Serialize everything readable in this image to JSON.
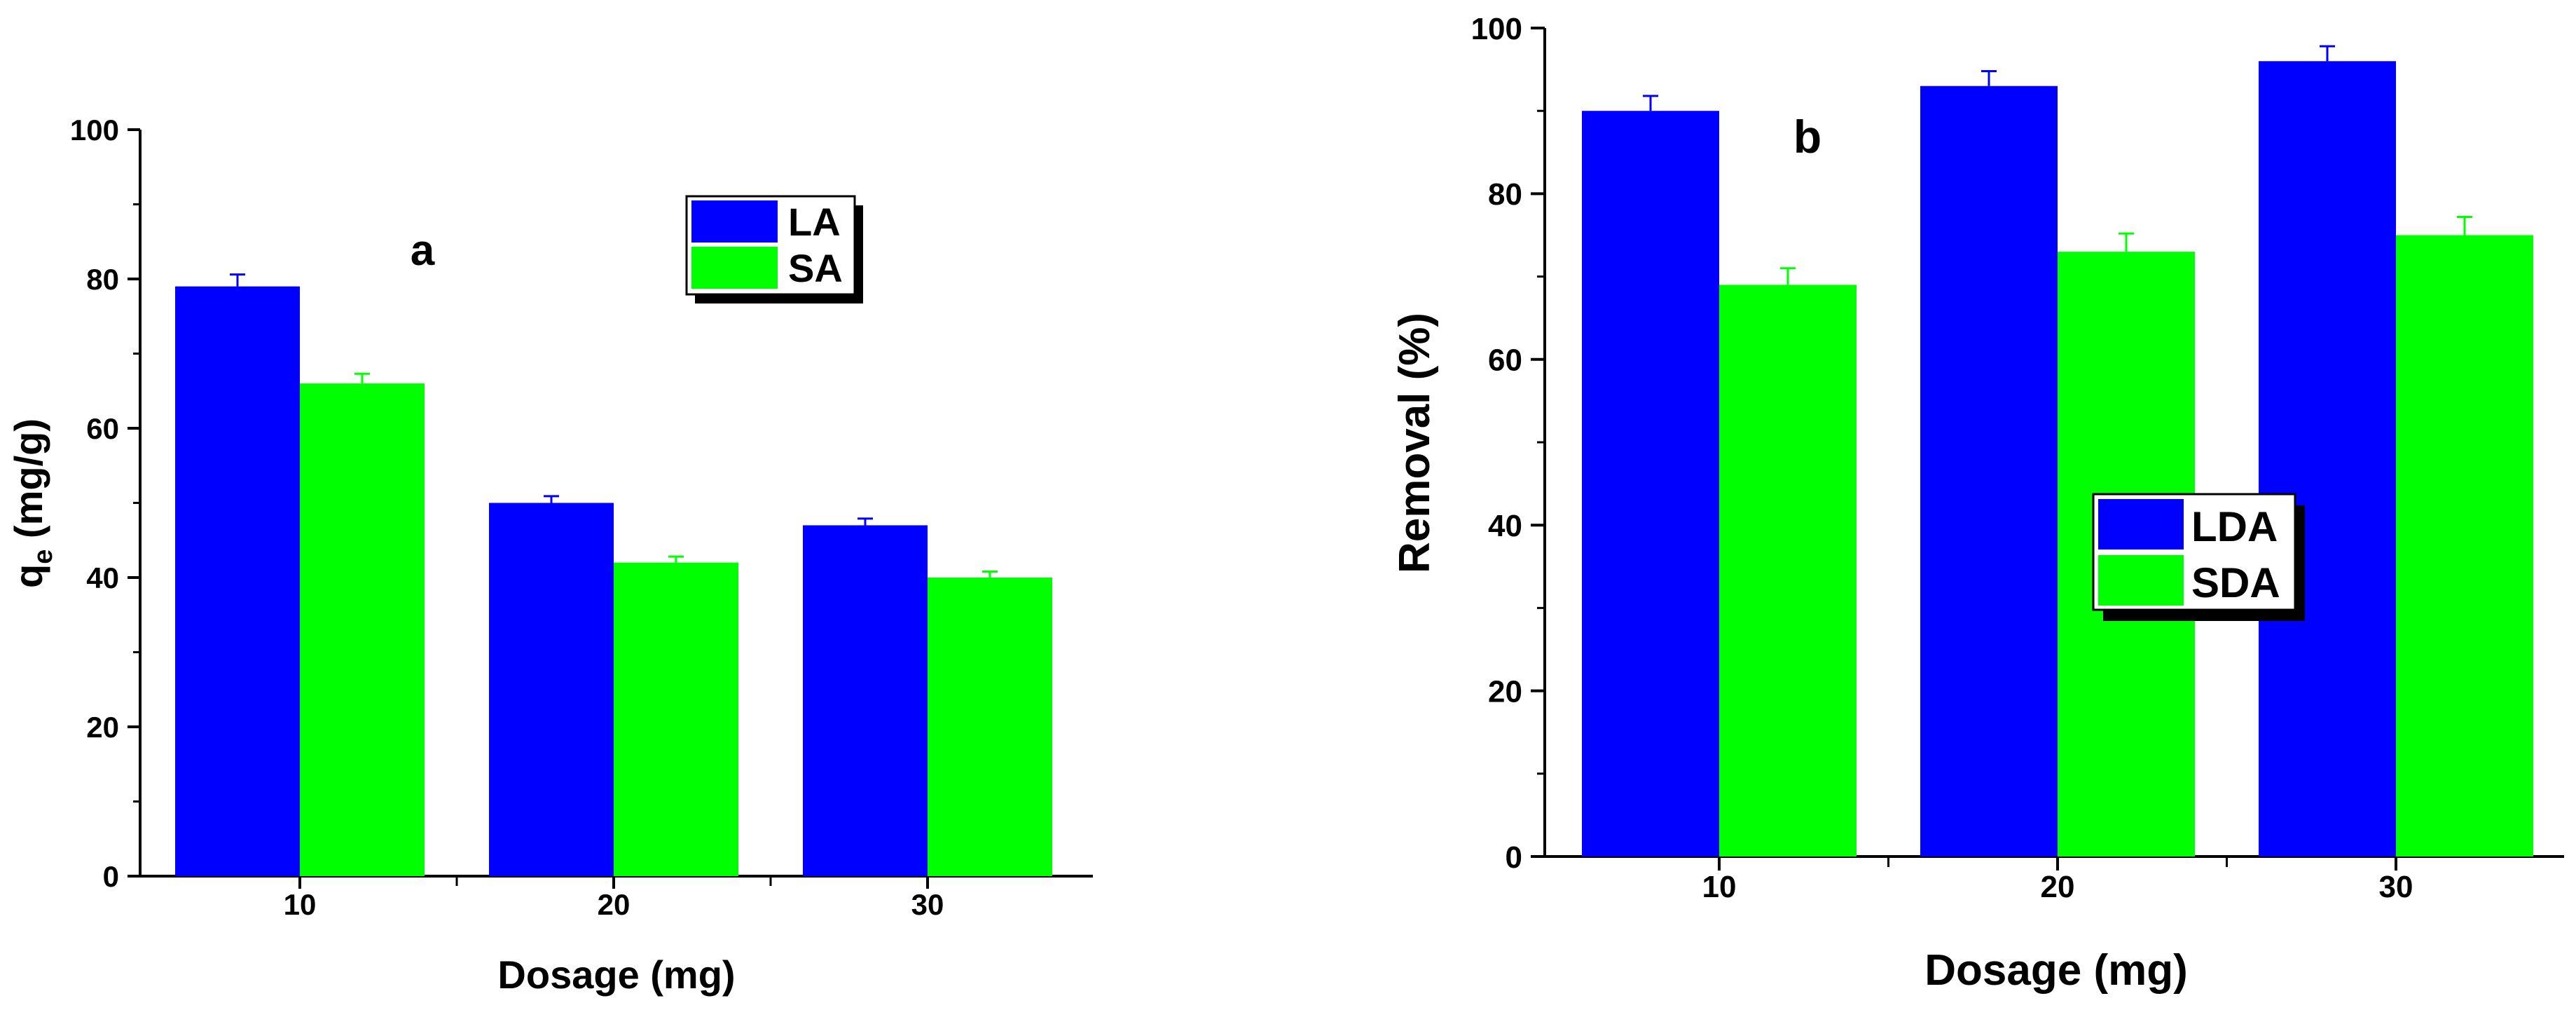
{
  "chart_data": [
    {
      "type": "bar",
      "panel_label": "a",
      "categories": [
        "10",
        "20",
        "30"
      ],
      "series": [
        {
          "name": "LA",
          "color": "#0000ff",
          "values": [
            79,
            50,
            47
          ],
          "errors": [
            1.6,
            0.9,
            0.9
          ]
        },
        {
          "name": "SA",
          "color": "#00ff00",
          "values": [
            66,
            42,
            40
          ],
          "errors": [
            1.3,
            0.8,
            0.8
          ]
        }
      ],
      "xlabel": "Dosage (mg)",
      "ylabel_main": "q",
      "ylabel_sub": "e",
      "ylabel_rest": " (mg/g)",
      "ylim": [
        0,
        100
      ],
      "yticks": [
        "0",
        "20",
        "40",
        "60",
        "80",
        "100"
      ],
      "legend_position": "top-right",
      "grid": false
    },
    {
      "type": "bar",
      "panel_label": "b",
      "categories": [
        "10",
        "20",
        "30"
      ],
      "series": [
        {
          "name": "LDA",
          "color": "#0000ff",
          "values": [
            90,
            93,
            96
          ],
          "errors": [
            1.8,
            1.8,
            1.8
          ]
        },
        {
          "name": "SDA",
          "color": "#00ff00",
          "values": [
            69,
            73,
            75
          ],
          "errors": [
            2.0,
            2.2,
            2.2
          ]
        }
      ],
      "xlabel": "Dosage (mg)",
      "ylabel": "Removal (%)",
      "ylim": [
        0,
        100
      ],
      "yticks": [
        "0",
        "20",
        "40",
        "60",
        "80",
        "100"
      ],
      "legend_position": "center-right",
      "grid": false
    }
  ]
}
